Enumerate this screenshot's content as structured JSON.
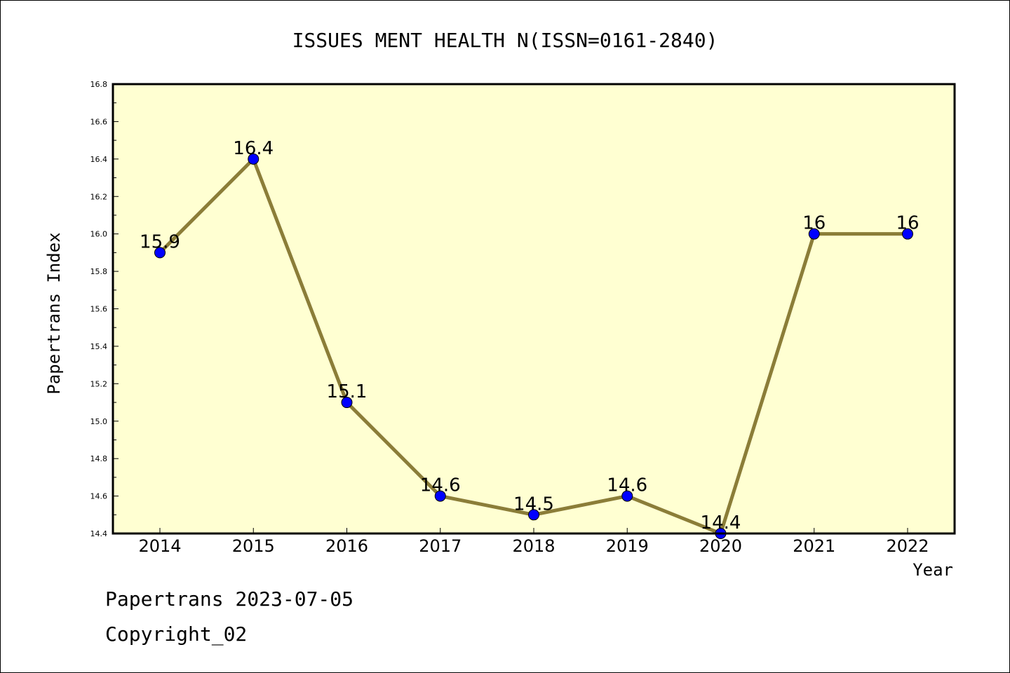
{
  "chart_data": {
    "type": "line",
    "title": "ISSUES MENT HEALTH N(ISSN=0161-2840)",
    "xlabel": "Year",
    "ylabel": "Papertrans Index",
    "categories": [
      "2014",
      "2015",
      "2016",
      "2017",
      "2018",
      "2019",
      "2020",
      "2021",
      "2022"
    ],
    "values": [
      15.9,
      16.4,
      15.1,
      14.6,
      14.5,
      14.6,
      14.4,
      16,
      16
    ],
    "data_labels": [
      "15.9",
      "16.4",
      "15.1",
      "14.6",
      "14.5",
      "14.6",
      "14.4",
      "16",
      "16"
    ],
    "ylim": [
      14.4,
      16.8
    ],
    "y_ticks": [
      "14.4",
      "14.6",
      "14.8",
      "15.0",
      "15.2",
      "15.4",
      "15.6",
      "15.8",
      "16.0",
      "16.2",
      "16.4",
      "16.6",
      "16.8"
    ],
    "grid": false,
    "colors": {
      "plot_background": "#ffffd2",
      "line": "#8b7d38",
      "marker": "#0000ff"
    }
  },
  "footer": {
    "line1": "Papertrans 2023-07-05",
    "line2": "Copyright_02"
  }
}
